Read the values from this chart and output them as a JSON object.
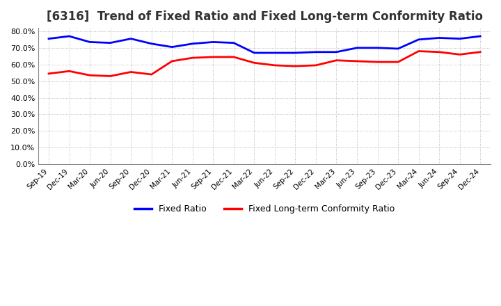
{
  "title": "[6316]  Trend of Fixed Ratio and Fixed Long-term Conformity Ratio",
  "title_fontsize": 12,
  "legend_labels": [
    "Fixed Ratio",
    "Fixed Long-term Conformity Ratio"
  ],
  "line_colors": [
    "#0000FF",
    "#FF0000"
  ],
  "x_labels": [
    "Sep-19",
    "Dec-19",
    "Mar-20",
    "Jun-20",
    "Sep-20",
    "Dec-20",
    "Mar-21",
    "Jun-21",
    "Sep-21",
    "Dec-21",
    "Mar-22",
    "Jun-22",
    "Sep-22",
    "Dec-22",
    "Mar-23",
    "Jun-23",
    "Sep-23",
    "Dec-23",
    "Mar-24",
    "Jun-24",
    "Sep-24",
    "Dec-24"
  ],
  "fixed_ratio": [
    75.5,
    77.0,
    73.5,
    73.0,
    75.5,
    72.5,
    70.5,
    72.5,
    73.5,
    73.0,
    67.0,
    67.0,
    67.0,
    67.5,
    67.5,
    70.0,
    70.0,
    69.5,
    75.0,
    76.0,
    75.5,
    77.0
  ],
  "fixed_lt_ratio": [
    54.5,
    56.0,
    53.5,
    53.0,
    55.5,
    54.0,
    62.0,
    64.0,
    64.5,
    64.5,
    61.0,
    59.5,
    59.0,
    59.5,
    62.5,
    62.0,
    61.5,
    61.5,
    68.0,
    67.5,
    66.0,
    67.5
  ],
  "ylim": [
    0,
    82
  ],
  "yticks": [
    0,
    10,
    20,
    30,
    40,
    50,
    60,
    70,
    80
  ],
  "background_color": "#FFFFFF",
  "plot_bg_color": "#FFFFFF",
  "grid_color": "#AAAAAA",
  "line_width": 2.0
}
